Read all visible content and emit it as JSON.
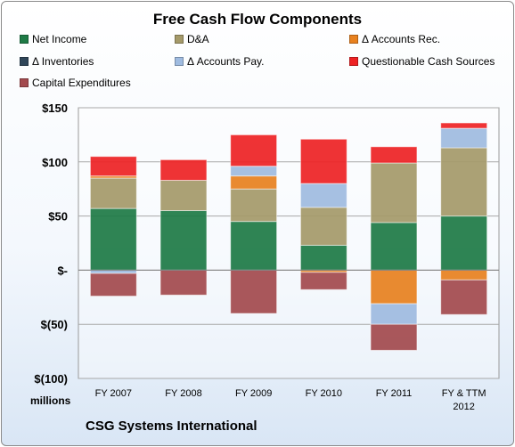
{
  "chart_data": {
    "type": "bar",
    "stacked": true,
    "title": "Free Cash Flow Components",
    "y_unit_label": "millions",
    "footer": "CSG Systems International",
    "categories": [
      "FY 2007",
      "FY 2008",
      "FY 2009",
      "FY 2010",
      "FY 2011",
      "FY & TTM 2012"
    ],
    "ylim": [
      -100,
      150
    ],
    "yticks": [
      150,
      100,
      50,
      0,
      -50,
      -100
    ],
    "ytick_labels": [
      "$150",
      "$100",
      "$50",
      "$-",
      "$(50)",
      "$(100)"
    ],
    "grid": true,
    "legend_position": "top",
    "series": [
      {
        "name": "Net Income",
        "color": "#1e7a46",
        "values": [
          57,
          55,
          45,
          23,
          44,
          50
        ]
      },
      {
        "name": "D&A",
        "color": "#a59a6a",
        "values": [
          28,
          28,
          30,
          35,
          55,
          63
        ]
      },
      {
        "name": "Δ Accounts Rec.",
        "color": "#e8811f",
        "values": [
          2,
          0,
          12,
          -2,
          -31,
          -9
        ]
      },
      {
        "name": "Δ Inventories",
        "color": "#2f4659",
        "values": [
          0,
          0,
          0,
          0,
          0,
          0
        ]
      },
      {
        "name": "Δ Accounts Pay.",
        "color": "#9fbbe0",
        "values": [
          -3,
          0,
          9,
          22,
          -19,
          18
        ]
      },
      {
        "name": "Questionable Cash Sources",
        "color": "#ee2224",
        "values": [
          18,
          19,
          29,
          41,
          15,
          5
        ]
      },
      {
        "name": "Capital Expenditures",
        "color": "#a34a4e",
        "values": [
          -21,
          -23,
          -40,
          -16,
          -24,
          -32
        ]
      }
    ]
  }
}
